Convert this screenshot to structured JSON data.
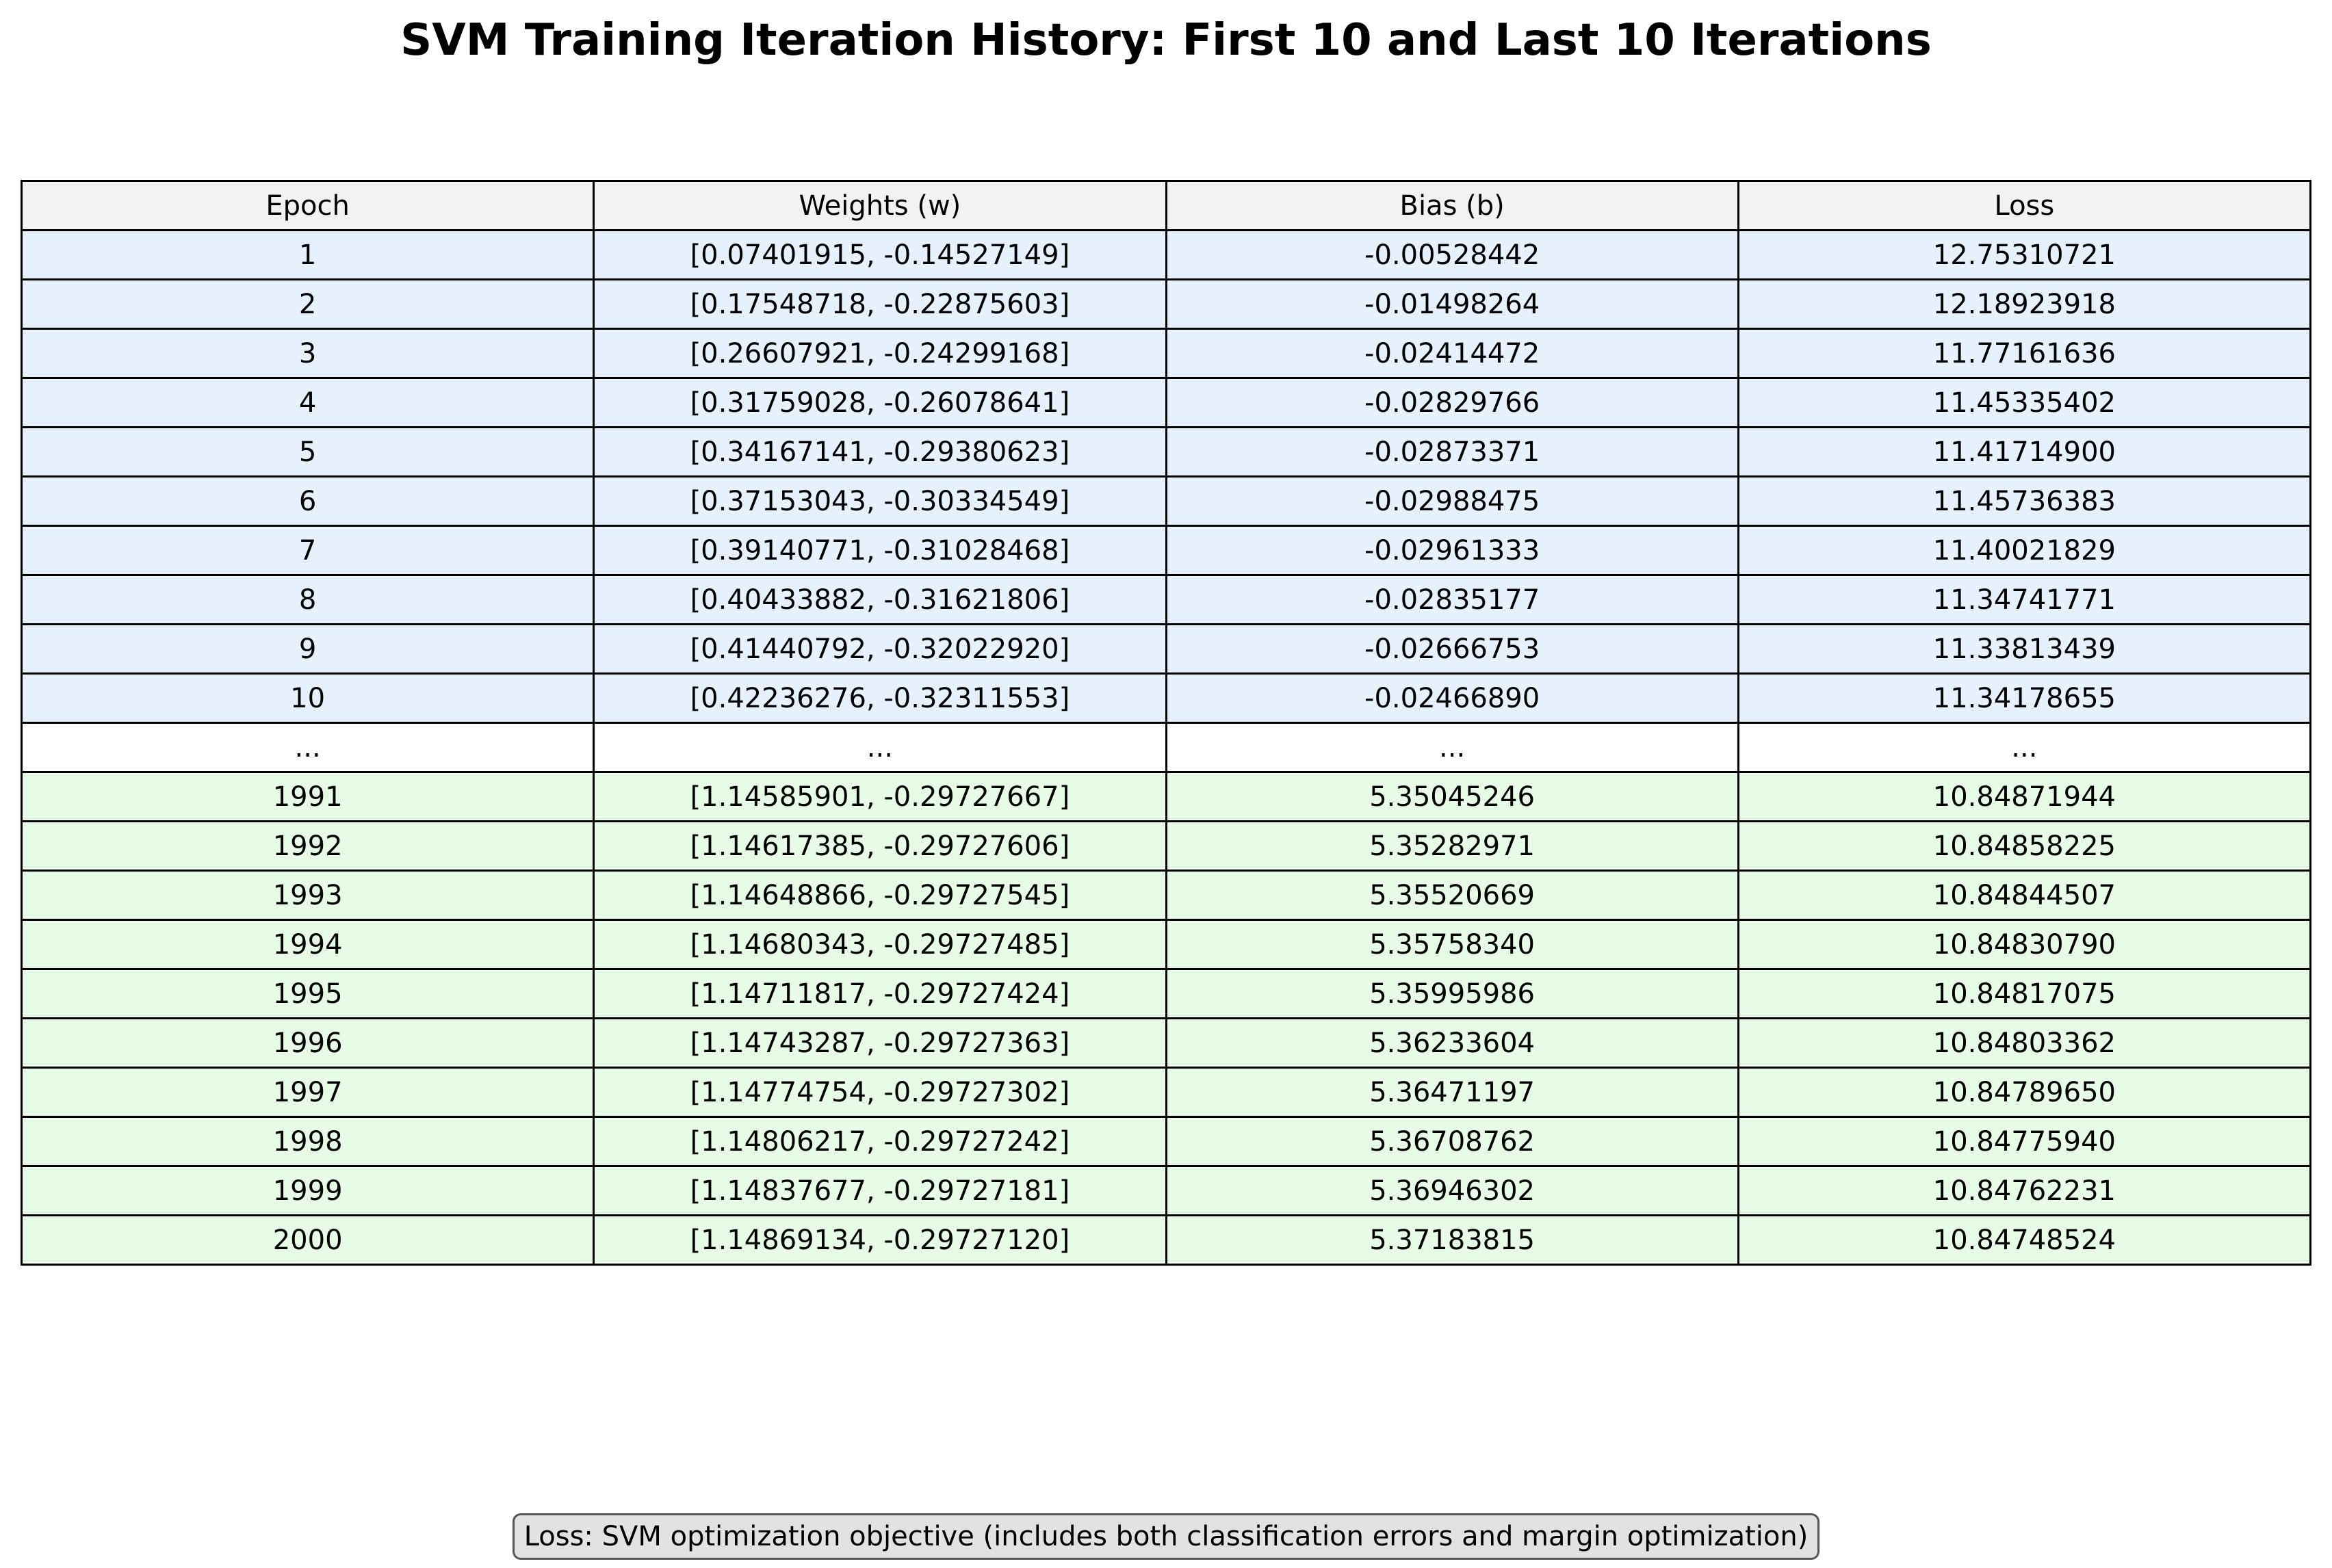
{
  "chart_data": {
    "type": "table",
    "title": "SVM Training Iteration History: First 10 and Last 10 Iterations",
    "columns": [
      "Epoch",
      "Weights (w)",
      "Bias (b)",
      "Loss"
    ],
    "rows": [
      {
        "group": "first",
        "cells": [
          "1",
          "[0.07401915, -0.14527149]",
          "-0.00528442",
          "12.75310721"
        ]
      },
      {
        "group": "first",
        "cells": [
          "2",
          "[0.17548718, -0.22875603]",
          "-0.01498264",
          "12.18923918"
        ]
      },
      {
        "group": "first",
        "cells": [
          "3",
          "[0.26607921, -0.24299168]",
          "-0.02414472",
          "11.77161636"
        ]
      },
      {
        "group": "first",
        "cells": [
          "4",
          "[0.31759028, -0.26078641]",
          "-0.02829766",
          "11.45335402"
        ]
      },
      {
        "group": "first",
        "cells": [
          "5",
          "[0.34167141, -0.29380623]",
          "-0.02873371",
          "11.41714900"
        ]
      },
      {
        "group": "first",
        "cells": [
          "6",
          "[0.37153043, -0.30334549]",
          "-0.02988475",
          "11.45736383"
        ]
      },
      {
        "group": "first",
        "cells": [
          "7",
          "[0.39140771, -0.31028468]",
          "-0.02961333",
          "11.40021829"
        ]
      },
      {
        "group": "first",
        "cells": [
          "8",
          "[0.40433882, -0.31621806]",
          "-0.02835177",
          "11.34741771"
        ]
      },
      {
        "group": "first",
        "cells": [
          "9",
          "[0.41440792, -0.32022920]",
          "-0.02666753",
          "11.33813439"
        ]
      },
      {
        "group": "first",
        "cells": [
          "10",
          "[0.42236276, -0.32311553]",
          "-0.02466890",
          "11.34178655"
        ]
      },
      {
        "group": "gap",
        "cells": [
          "...",
          "...",
          "...",
          "..."
        ]
      },
      {
        "group": "last",
        "cells": [
          "1991",
          "[1.14585901, -0.29727667]",
          "5.35045246",
          "10.84871944"
        ]
      },
      {
        "group": "last",
        "cells": [
          "1992",
          "[1.14617385, -0.29727606]",
          "5.35282971",
          "10.84858225"
        ]
      },
      {
        "group": "last",
        "cells": [
          "1993",
          "[1.14648866, -0.29727545]",
          "5.35520669",
          "10.84844507"
        ]
      },
      {
        "group": "last",
        "cells": [
          "1994",
          "[1.14680343, -0.29727485]",
          "5.35758340",
          "10.84830790"
        ]
      },
      {
        "group": "last",
        "cells": [
          "1995",
          "[1.14711817, -0.29727424]",
          "5.35995986",
          "10.84817075"
        ]
      },
      {
        "group": "last",
        "cells": [
          "1996",
          "[1.14743287, -0.29727363]",
          "5.36233604",
          "10.84803362"
        ]
      },
      {
        "group": "last",
        "cells": [
          "1997",
          "[1.14774754, -0.29727302]",
          "5.36471197",
          "10.84789650"
        ]
      },
      {
        "group": "last",
        "cells": [
          "1998",
          "[1.14806217, -0.29727242]",
          "5.36708762",
          "10.84775940"
        ]
      },
      {
        "group": "last",
        "cells": [
          "1999",
          "[1.14837677, -0.29727181]",
          "5.36946302",
          "10.84762231"
        ]
      },
      {
        "group": "last",
        "cells": [
          "2000",
          "[1.14869134, -0.29727120]",
          "5.37183815",
          "10.84748524"
        ]
      }
    ],
    "footnote": "Loss: SVM optimization objective (includes both classification errors and margin optimization)",
    "colors": {
      "header": "#f2f2f2",
      "first_rows": "#e6f1fd",
      "gap_row": "#ffffff",
      "last_rows": "#e7fce6",
      "footnote_box": "#e2e2e2"
    }
  }
}
